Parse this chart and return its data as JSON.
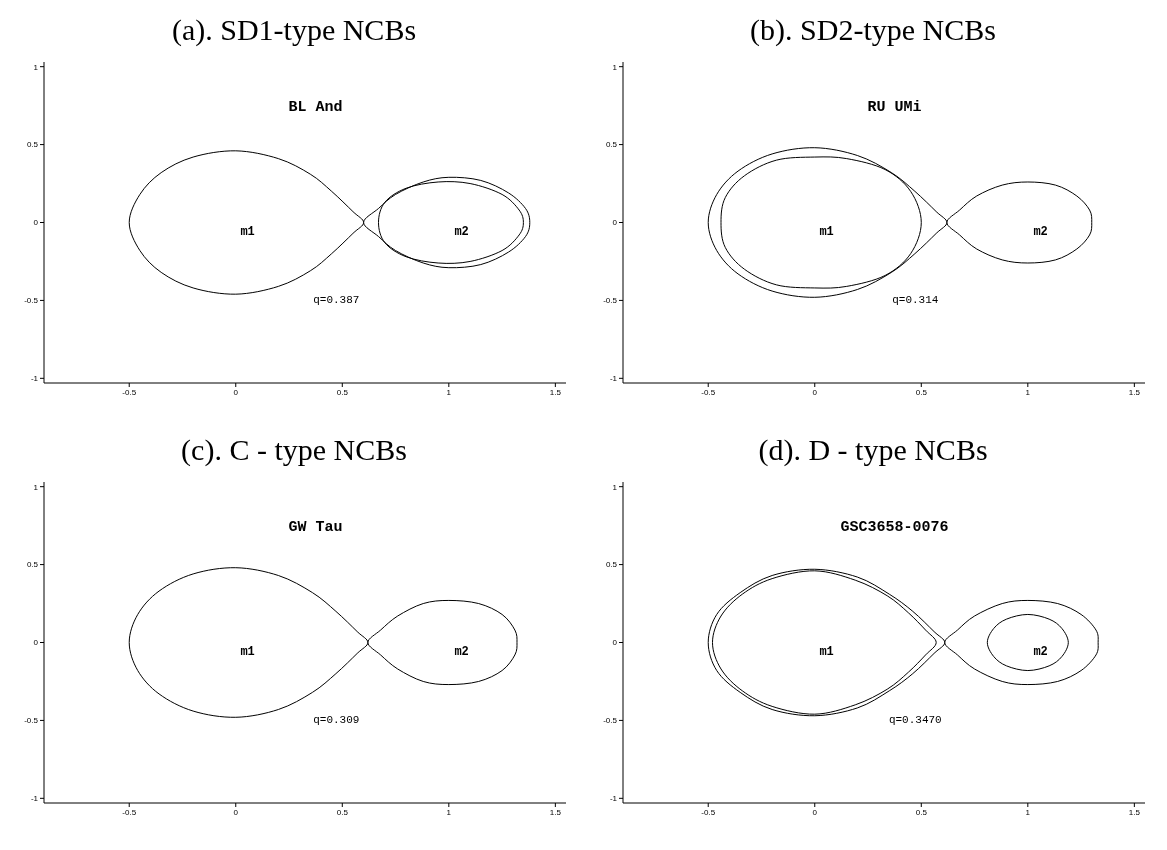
{
  "chart_data": [
    {
      "type": "line",
      "title": "(a). SD1-type NCBs",
      "xlim": [
        -0.9,
        1.55
      ],
      "ylim": [
        -1.03,
        1.03
      ],
      "xticks": [
        -0.5,
        0,
        0.5,
        1,
        1.5
      ],
      "yticks": [
        -1,
        -0.5,
        0,
        0.5,
        1
      ],
      "grid": false,
      "annotations": [
        "BL And",
        "q=0.387",
        "m1",
        "m2"
      ]
    },
    {
      "type": "line",
      "title": "(b). SD2-type NCBs",
      "xlim": [
        -0.9,
        1.55
      ],
      "ylim": [
        -1.03,
        1.03
      ],
      "xticks": [
        -0.5,
        0,
        0.5,
        1,
        1.5
      ],
      "yticks": [
        -1,
        -0.5,
        0,
        0.5,
        1
      ],
      "grid": false,
      "annotations": [
        "RU UMi",
        "q=0.314",
        "m1",
        "m2"
      ]
    },
    {
      "type": "line",
      "title": "(c). C - type NCBs",
      "xlim": [
        -0.9,
        1.55
      ],
      "ylim": [
        -1.03,
        1.03
      ],
      "xticks": [
        -0.5,
        0,
        0.5,
        1,
        1.5
      ],
      "yticks": [
        -1,
        -0.5,
        0,
        0.5,
        1
      ],
      "grid": false,
      "annotations": [
        "GW Tau",
        "q=0.309",
        "m1",
        "m2"
      ]
    },
    {
      "type": "line",
      "title": "(d). D - type NCBs",
      "xlim": [
        -0.9,
        1.55
      ],
      "ylim": [
        -1.03,
        1.03
      ],
      "xticks": [
        -0.5,
        0,
        0.5,
        1,
        1.5
      ],
      "yticks": [
        -1,
        -0.5,
        0,
        0.5,
        1
      ],
      "grid": false,
      "annotations": [
        "GSC3658-0076",
        "q=0.3470",
        "m1",
        "m2"
      ]
    }
  ]
}
